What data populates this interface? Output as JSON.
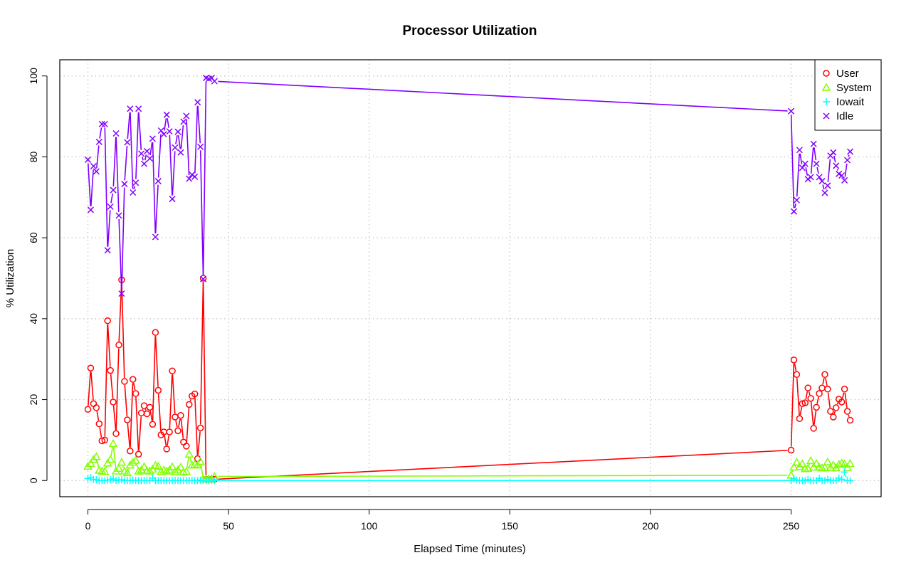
{
  "chart_data": {
    "type": "line",
    "title": "Processor Utilization",
    "xlabel": "Elapsed Time (minutes)",
    "ylabel": "% Utilization",
    "xlim": [
      -10,
      282
    ],
    "ylim": [
      -4,
      104
    ],
    "xticks": [
      0,
      50,
      100,
      150,
      200,
      250
    ],
    "yticks": [
      0,
      20,
      40,
      60,
      80,
      100
    ],
    "grid": true,
    "legend_position": "top-right",
    "x": [
      0,
      1,
      2,
      3,
      4,
      5,
      6,
      7,
      8,
      9,
      10,
      11,
      12,
      13,
      14,
      15,
      16,
      17,
      18,
      19,
      20,
      21,
      22,
      23,
      24,
      25,
      26,
      27,
      28,
      29,
      30,
      31,
      32,
      33,
      34,
      35,
      36,
      37,
      38,
      39,
      40,
      41,
      42,
      43,
      44,
      45,
      250,
      251,
      252,
      253,
      254,
      255,
      256,
      257,
      258,
      259,
      260,
      261,
      262,
      263,
      264,
      265,
      266,
      267,
      268,
      269,
      270,
      271
    ],
    "series": [
      {
        "name": "User",
        "color": "#ff0000",
        "marker": "circle",
        "values": [
          17.6,
          27.8,
          19,
          18,
          14,
          9.8,
          10,
          39.5,
          27.2,
          19.4,
          11.6,
          33.5,
          49.6,
          24.5,
          15,
          7.3,
          25,
          21.5,
          6.5,
          16.7,
          18.5,
          16.5,
          18.1,
          13.9,
          36.6,
          22.3,
          11.3,
          12,
          7.8,
          12,
          27.1,
          15.7,
          12.3,
          16.1,
          9.5,
          8.5,
          18.8,
          20.9,
          21.4,
          5.4,
          13,
          50,
          0.3,
          0.3,
          0.3,
          0.3,
          7.5,
          29.8,
          26.2,
          15.3,
          19,
          19.2,
          22.9,
          20.3,
          12.9,
          18.1,
          21.5,
          22.9,
          26.2,
          22.6,
          17.1,
          15.7,
          18,
          20.1,
          19.4,
          22.6,
          17.1,
          14.9
        ]
      },
      {
        "name": "System",
        "color": "#80ff00",
        "marker": "triangle",
        "values": [
          3.5,
          4.2,
          5.2,
          5.9,
          2.5,
          2.3,
          2.2,
          4.3,
          5.2,
          9.1,
          2.3,
          3,
          4.5,
          2.3,
          1.9,
          3.8,
          4.5,
          5,
          2.3,
          2.6,
          3.4,
          2.4,
          2.3,
          2.8,
          3.7,
          3.5,
          2.2,
          2.6,
          2.3,
          2.6,
          3.4,
          2.2,
          2.6,
          3.3,
          2.1,
          2.2,
          6.5,
          3.8,
          4,
          3.8,
          4.7,
          0.4,
          0.4,
          0.4,
          0.4,
          1,
          1.3,
          3.3,
          4.5,
          3.4,
          4.1,
          2.9,
          3,
          4.9,
          3.3,
          4.2,
          3.3,
          3.1,
          3.2,
          4.6,
          3.2,
          3.8,
          3.1,
          4,
          4.3,
          4.1,
          3.2,
          4.2
        ]
      },
      {
        "name": "Iowait",
        "color": "#00ffff",
        "marker": "plus",
        "values": [
          0.5,
          0.7,
          0.3,
          0.2,
          0,
          0,
          0,
          0.1,
          0.2,
          0.4,
          0,
          0.1,
          0.2,
          0,
          0,
          0,
          0.1,
          0,
          0,
          0,
          0,
          0,
          0,
          0.6,
          0,
          0,
          0,
          0,
          0,
          0,
          0,
          0,
          0,
          0,
          0,
          0,
          0,
          0,
          0,
          0,
          0.1,
          0,
          0,
          0,
          0,
          0,
          0,
          0.4,
          0.1,
          0,
          0,
          0,
          0.2,
          0,
          0,
          0,
          0.5,
          0,
          0,
          0.3,
          0,
          0,
          0,
          0.6,
          0.3,
          2.1,
          0,
          0
        ]
      },
      {
        "name": "Idle",
        "color": "#8000ff",
        "marker": "x",
        "values": [
          79.3,
          66.9,
          77.7,
          76.4,
          83.7,
          88.1,
          88.1,
          56.9,
          67.7,
          71.8,
          85.8,
          65.5,
          46.2,
          73.3,
          83.6,
          91.9,
          71.2,
          73.6,
          91.9,
          80.8,
          78.3,
          81.4,
          79.6,
          84.5,
          60.2,
          74,
          86.5,
          85.6,
          90.4,
          86.3,
          69.6,
          82.3,
          86.2,
          81.1,
          88.7,
          90.1,
          74.6,
          75.6,
          75.1,
          93.5,
          82.5,
          49.8,
          99.5,
          99.3,
          99.5,
          98.7,
          91.3,
          66.5,
          69.3,
          81.7,
          77.3,
          78.3,
          74.5,
          75,
          83.2,
          78.3,
          75,
          74,
          71.1,
          72.9,
          80.3,
          81.1,
          77.8,
          75.8,
          75.4,
          74.2,
          79.2,
          81.3
        ]
      }
    ]
  }
}
